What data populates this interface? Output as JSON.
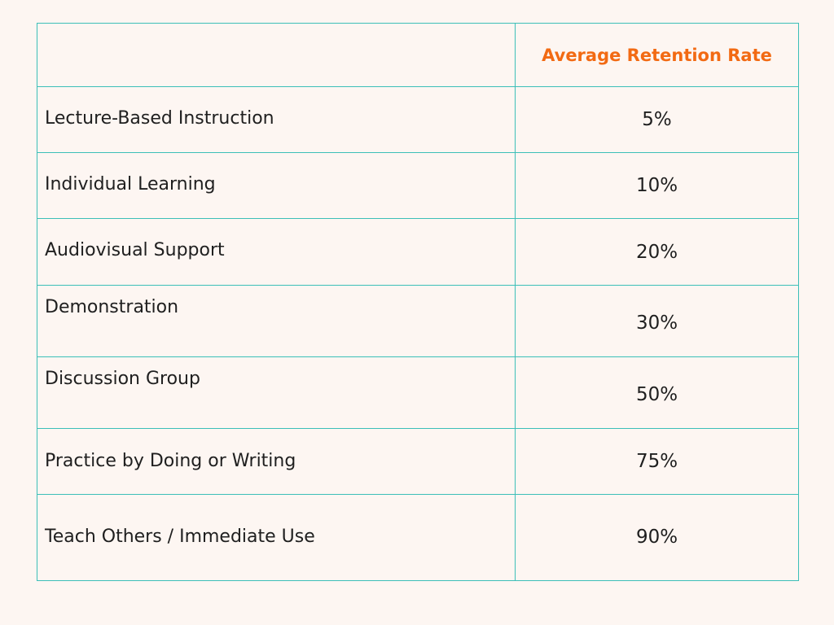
{
  "colors": {
    "background": "#fdf6f2",
    "border": "#3cbfb8",
    "header_text": "#f26a13",
    "body_text": "#1f1f1f"
  },
  "table": {
    "header": {
      "method": "",
      "rate": "Average Retention Rate"
    },
    "rows": [
      {
        "method": "Lecture-Based Instruction",
        "rate": "5%"
      },
      {
        "method": "Individual Learning",
        "rate": "10%"
      },
      {
        "method": "Audiovisual Support",
        "rate": "20%"
      },
      {
        "method": "Demonstration",
        "rate": "30%"
      },
      {
        "method": "Discussion Group",
        "rate": "50%"
      },
      {
        "method": "Practice by Doing or Writing",
        "rate": "75%"
      },
      {
        "method": "Teach Others / Immediate Use",
        "rate": "90%"
      }
    ]
  }
}
